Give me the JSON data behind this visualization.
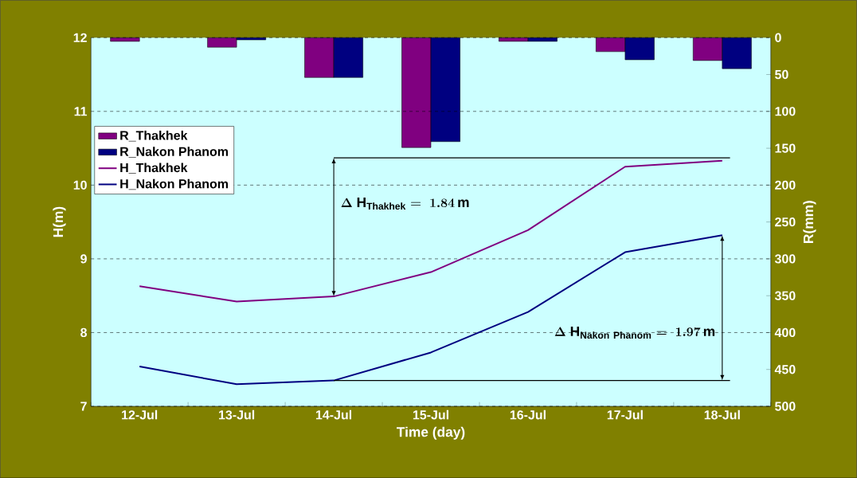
{
  "chart_data": {
    "type": "line",
    "xlabel": "Time (day)",
    "ylabel": "H(m)",
    "y2label": "R(mm)",
    "categories": [
      "12-Jul",
      "13-Jul",
      "14-Jul",
      "15-Jul",
      "16-Jul",
      "17-Jul",
      "18-Jul"
    ],
    "series": [
      {
        "name": "R_Thakhek",
        "type": "bar",
        "axis": "y2",
        "color": "#800080",
        "values": [
          5,
          13,
          54,
          149,
          5,
          19,
          31
        ]
      },
      {
        "name": "R_Nakon Phanom",
        "type": "bar",
        "axis": "y2",
        "color": "#000080",
        "values": [
          null,
          3,
          54,
          141,
          5,
          30,
          42
        ]
      },
      {
        "name": "H_Thakhek",
        "color": "#800080",
        "values": [
          8.63,
          8.42,
          8.49,
          8.82,
          9.39,
          10.25,
          10.33
        ]
      },
      {
        "name": "H_Nakon Phanom",
        "color": "#000080",
        "values": [
          7.54,
          7.3,
          7.35,
          7.73,
          8.28,
          9.09,
          9.32
        ]
      }
    ],
    "ylim": [
      7,
      12
    ],
    "yticks": [
      7,
      8,
      9,
      10,
      11,
      12
    ],
    "y2lim": [
      500,
      0
    ],
    "y2ticks": [
      0,
      50,
      100,
      150,
      200,
      250,
      300,
      350,
      400,
      450,
      500
    ],
    "grid": "y",
    "legend": "left",
    "ref_lines": [
      {
        "axis": "y",
        "value": 10.37,
        "color": "#000000"
      },
      {
        "axis": "y",
        "value": 7.35,
        "color": "#000000"
      }
    ],
    "annotations": [
      "\\Delta\\ \\mathrm{H}_{\\mathrm{Thakhek}} =\\ 1.84\\,\\mathrm{m}",
      "\\Delta\\ \\mathrm{H}_{\\mathrm{Nakon\\ Phanom}} =\\ 1.97\\,\\mathrm{m}"
    ]
  }
}
